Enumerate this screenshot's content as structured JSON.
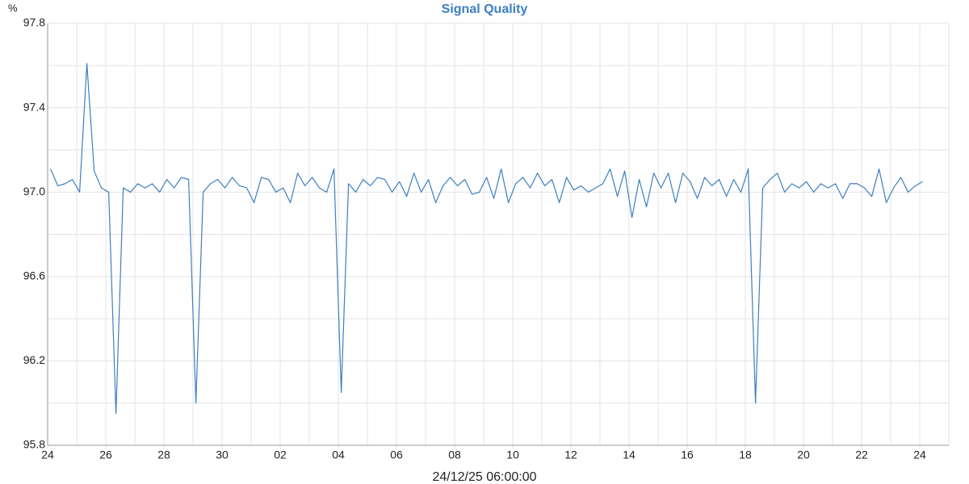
{
  "chart_data": {
    "type": "line",
    "title": "Signal Quality",
    "y_unit": "%",
    "x_label": "24/12/25 06:00:00",
    "x": [
      0.1,
      0.35,
      0.6,
      0.85,
      1.1,
      1.35,
      1.6,
      1.85,
      2.1,
      2.35,
      2.6,
      2.85,
      3.1,
      3.35,
      3.6,
      3.85,
      4.1,
      4.35,
      4.6,
      4.85,
      5.1,
      5.35,
      5.6,
      5.85,
      6.1,
      6.35,
      6.6,
      6.85,
      7.1,
      7.35,
      7.6,
      7.85,
      8.1,
      8.35,
      8.6,
      8.85,
      9.1,
      9.35,
      9.6,
      9.85,
      10.1,
      10.35,
      10.6,
      10.85,
      11.1,
      11.35,
      11.6,
      11.85,
      12.1,
      12.35,
      12.6,
      12.85,
      13.1,
      13.35,
      13.6,
      13.85,
      14.1,
      14.35,
      14.6,
      14.85,
      15.1,
      15.35,
      15.6,
      15.85,
      16.1,
      16.35,
      16.6,
      16.85,
      17.1,
      17.35,
      17.6,
      17.85,
      18.1,
      18.35,
      18.6,
      18.85,
      19.1,
      19.35,
      19.6,
      19.85,
      20.1,
      20.35,
      20.6,
      20.85,
      21.1,
      21.35,
      21.6,
      21.85,
      22.1,
      22.35,
      22.6,
      22.85,
      23.1,
      23.35,
      23.6,
      23.85,
      24.1,
      24.35,
      24.6,
      24.85,
      25.1,
      25.35,
      25.6,
      25.85,
      26.1,
      26.35,
      26.6,
      26.85,
      27.1,
      27.35,
      27.6,
      27.85,
      28.1,
      28.35,
      28.6,
      28.85,
      29.1,
      29.35,
      29.6,
      29.85,
      30.1
    ],
    "series": [
      {
        "name": "Signal Quality",
        "color": "#3d7fbf",
        "values": [
          97.11,
          97.03,
          97.04,
          97.06,
          97.0,
          97.61,
          97.1,
          97.02,
          97.0,
          95.95,
          97.02,
          97.0,
          97.04,
          97.02,
          97.04,
          97.0,
          97.06,
          97.02,
          97.07,
          97.06,
          96.0,
          97.0,
          97.04,
          97.06,
          97.02,
          97.07,
          97.03,
          97.02,
          96.95,
          97.07,
          97.06,
          97.0,
          97.02,
          96.95,
          97.09,
          97.03,
          97.07,
          97.02,
          97.0,
          97.11,
          96.05,
          97.04,
          97.0,
          97.06,
          97.03,
          97.07,
          97.06,
          97.0,
          97.05,
          96.98,
          97.09,
          97.0,
          97.06,
          96.95,
          97.03,
          97.07,
          97.03,
          97.06,
          96.99,
          97.0,
          97.07,
          96.97,
          97.11,
          96.95,
          97.04,
          97.07,
          97.02,
          97.09,
          97.03,
          97.06,
          96.95,
          97.07,
          97.01,
          97.03,
          97.0,
          97.02,
          97.04,
          97.11,
          96.98,
          97.1,
          96.88,
          97.06,
          96.93,
          97.09,
          97.02,
          97.09,
          96.95,
          97.09,
          97.05,
          96.97,
          97.07,
          97.03,
          97.06,
          96.98,
          97.06,
          97.0,
          97.11,
          96.0,
          97.02,
          97.06,
          97.09,
          97.0,
          97.04,
          97.02,
          97.05,
          97.0,
          97.04,
          97.02,
          97.04,
          96.97,
          97.04,
          97.04,
          97.02,
          96.98,
          97.11,
          96.95,
          97.02,
          97.07,
          97.0,
          97.03,
          97.05
        ]
      }
    ],
    "xlim": [
      0,
      31
    ],
    "xticks": [
      {
        "value": 0,
        "label": "24"
      },
      {
        "value": 2,
        "label": "26"
      },
      {
        "value": 4,
        "label": "28"
      },
      {
        "value": 6,
        "label": "30"
      },
      {
        "value": 8,
        "label": "02"
      },
      {
        "value": 10,
        "label": "04"
      },
      {
        "value": 12,
        "label": "06"
      },
      {
        "value": 14,
        "label": "08"
      },
      {
        "value": 16,
        "label": "10"
      },
      {
        "value": 18,
        "label": "12"
      },
      {
        "value": 20,
        "label": "14"
      },
      {
        "value": 22,
        "label": "16"
      },
      {
        "value": 24,
        "label": "18"
      },
      {
        "value": 26,
        "label": "20"
      },
      {
        "value": 28,
        "label": "22"
      },
      {
        "value": 30,
        "label": "24"
      }
    ],
    "xminor": [
      1,
      3,
      5,
      7,
      9,
      11,
      13,
      15,
      17,
      19,
      21,
      23,
      25,
      27,
      29,
      31
    ],
    "ylim": [
      95.8,
      97.8
    ],
    "yticks": [
      95.8,
      96.2,
      96.6,
      {
        "value": 97,
        "label": "97.0"
      },
      97.4,
      97.8
    ],
    "yminor": [
      96.0,
      96.4,
      96.8,
      97.2,
      97.6
    ],
    "grid": true
  }
}
